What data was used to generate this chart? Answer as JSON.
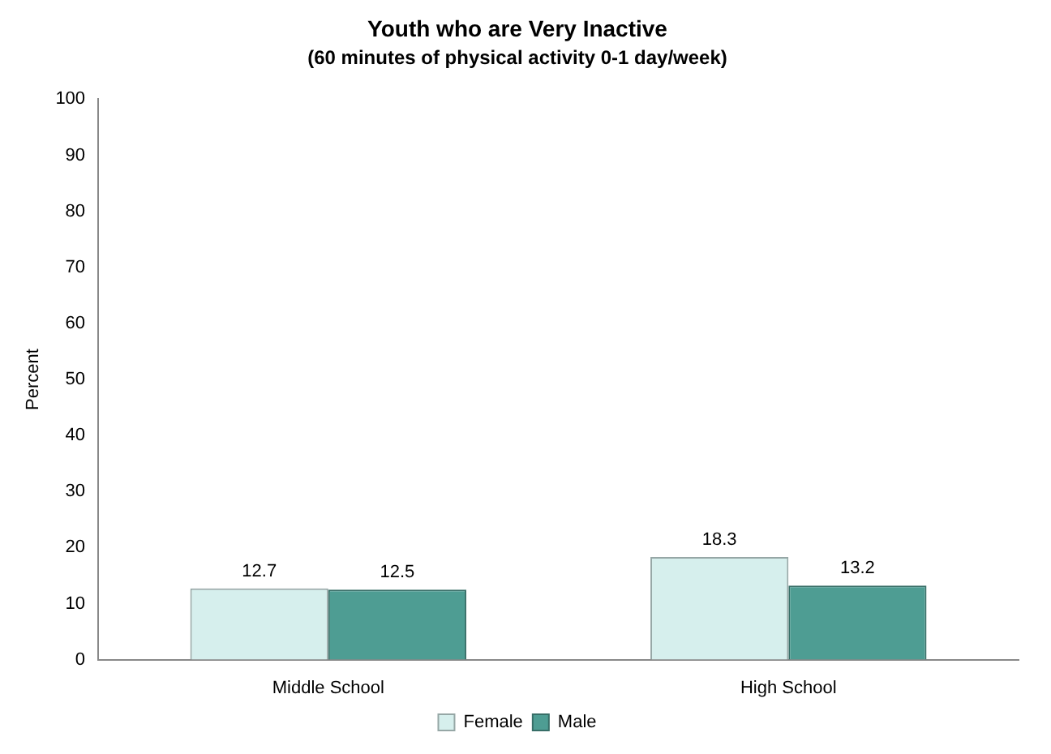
{
  "chart_data": {
    "type": "bar",
    "title": "Youth who are Very Inactive",
    "subtitle": "(60 minutes of physical activity 0-1 day/week)",
    "ylabel": "Percent",
    "categories": [
      "Middle School",
      "High School"
    ],
    "series": [
      {
        "name": "Female",
        "color": "#d6efed",
        "values": [
          12.7,
          18.3
        ]
      },
      {
        "name": "Male",
        "color": "#4e9d93",
        "values": [
          12.5,
          13.2
        ]
      }
    ],
    "ylim": [
      0,
      100
    ],
    "yticks": [
      0,
      10,
      20,
      30,
      40,
      50,
      60,
      70,
      80,
      90,
      100
    ],
    "grid": false,
    "legend": "bottom",
    "data_labels": true
  }
}
